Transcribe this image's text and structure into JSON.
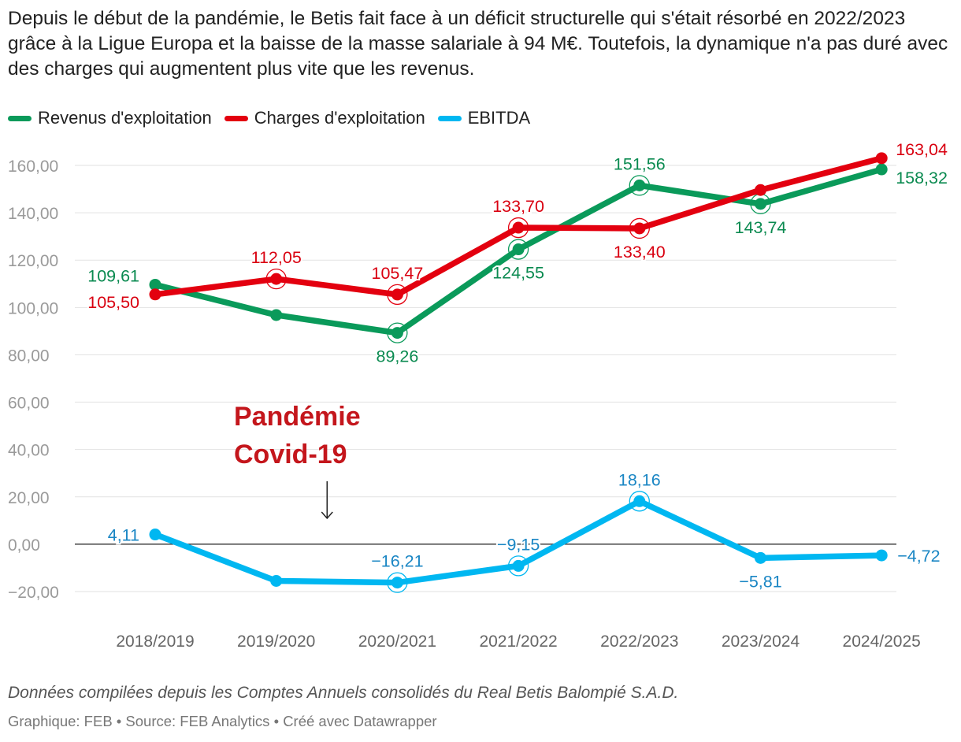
{
  "title": "Depuis le début de la pandémie, le Betis fait face à un déficit structurelle qui s'était résorbé en 2022/2023 grâce à la Ligue Europa et la baisse de la masse salariale à 94 M€. Toutefois, la dynamique n'a pas duré avec des charges qui augmentent plus vite que les revenus.",
  "legend": [
    {
      "label": "Revenus d'exploitation",
      "color": "#0a9a5a"
    },
    {
      "label": "Charges d'exploitation",
      "color": "#e3000f"
    },
    {
      "label": "EBITDA",
      "color": "#00b7f1"
    }
  ],
  "caption": "Données compilées depuis les Comptes Annuels consolidés du Real Betis Balompié S.A.D.",
  "footer": "Graphique: FEB • Source: FEB Analytics • Créé avec Datawrapper",
  "chart_data": {
    "type": "line",
    "categories": [
      "2018/2019",
      "2019/2020",
      "2020/2021",
      "2021/2022",
      "2022/2023",
      "2023/2024",
      "2024/2025"
    ],
    "ylim": [
      -20,
      160
    ],
    "yticks": [
      -20,
      0,
      20,
      40,
      60,
      80,
      100,
      120,
      140,
      160
    ],
    "ytick_labels": [
      "−20,00",
      "0,00",
      "20,00",
      "40,00",
      "60,00",
      "80,00",
      "100,00",
      "120,00",
      "140,00",
      "160,00"
    ],
    "series": [
      {
        "name": "Revenus d'exploitation",
        "color": "#0a9a5a",
        "label_color": "#0a8a50",
        "values": [
          109.61,
          96.8,
          89.26,
          124.55,
          151.56,
          143.74,
          158.32
        ],
        "labels": [
          "109,61",
          null,
          "89,26",
          "124,55",
          "151,56",
          "143,74",
          "158,32"
        ],
        "label_pos": [
          "left-above",
          null,
          "below",
          "below",
          "above",
          "below",
          "right-below"
        ],
        "highlight": [
          false,
          false,
          true,
          true,
          true,
          true,
          false
        ]
      },
      {
        "name": "Charges d'exploitation",
        "color": "#e3000f",
        "label_color": "#d90010",
        "values": [
          105.5,
          112.05,
          105.47,
          133.7,
          133.4,
          149.6,
          163.04
        ],
        "labels": [
          "105,50",
          "112,05",
          "105,47",
          "133,70",
          "133,40",
          null,
          "163,04"
        ],
        "label_pos": [
          "left-below",
          "above",
          "above",
          "above",
          "below",
          null,
          "right-above"
        ],
        "highlight": [
          false,
          true,
          true,
          true,
          true,
          false,
          false
        ]
      },
      {
        "name": "EBITDA",
        "color": "#00b7f1",
        "label_color": "#1a86c4",
        "values": [
          4.11,
          -15.5,
          -16.21,
          -9.15,
          18.16,
          -5.81,
          -4.72
        ],
        "labels": [
          "4,11",
          null,
          "−16,21",
          "−9,15",
          "18,16",
          "−5,81",
          "−4,72"
        ],
        "label_pos": [
          "left",
          null,
          "above",
          "above",
          "above",
          "below",
          "right"
        ],
        "highlight": [
          false,
          false,
          true,
          true,
          true,
          false,
          false
        ]
      }
    ],
    "annotation": {
      "text": [
        "Pandémie",
        "Covid-19"
      ],
      "color": "#c4161c",
      "category_index": 1.42
    }
  }
}
